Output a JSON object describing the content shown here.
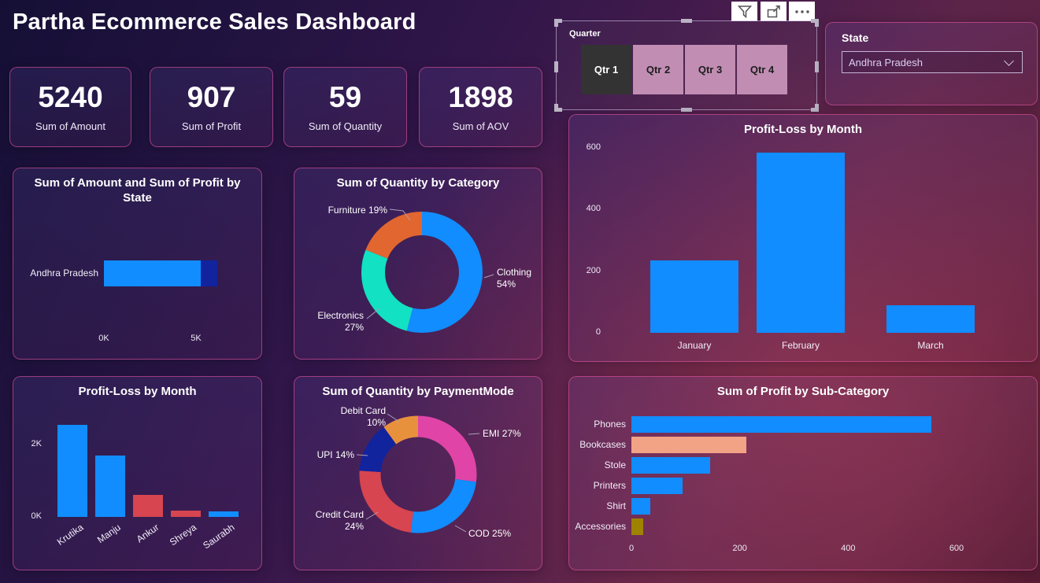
{
  "title": "Partha Ecommerce Sales Dashboard",
  "toolbar": {
    "buttons": [
      {
        "name": "filter"
      },
      {
        "name": "focus-mode"
      },
      {
        "name": "more-options"
      }
    ]
  },
  "quarter_slicer": {
    "label": "Quarter",
    "options": [
      {
        "label": "Qtr 1",
        "selected": true
      },
      {
        "label": "Qtr 2",
        "selected": false
      },
      {
        "label": "Qtr 3",
        "selected": false
      },
      {
        "label": "Qtr 4",
        "selected": false
      }
    ]
  },
  "state_filter": {
    "label": "State",
    "selected_value": "Andhra Pradesh"
  },
  "kpis": [
    {
      "value": "5240",
      "label": "Sum of Amount"
    },
    {
      "value": "907",
      "label": "Sum of Profit"
    },
    {
      "value": "59",
      "label": "Sum of Quantity"
    },
    {
      "value": "1898",
      "label": "Sum of AOV"
    }
  ],
  "chart_data": [
    {
      "id": "state-chart",
      "type": "bar",
      "orientation": "horizontal",
      "stacked": true,
      "title": "Sum of Amount and Sum of Profit by State",
      "categories": [
        "Andhra Pradesh"
      ],
      "series": [
        {
          "name": "Sum of Amount",
          "values": [
            5240
          ],
          "color": "#118DFF"
        },
        {
          "name": "Sum of Profit",
          "values": [
            907
          ],
          "color": "#12239E"
        }
      ],
      "x_ticks": [
        {
          "label": "0K",
          "value": 0
        },
        {
          "label": "5K",
          "value": 5000
        }
      ],
      "xlim": [
        0,
        6400
      ],
      "grid": false
    },
    {
      "id": "category-donut",
      "type": "pie",
      "subtype": "donut",
      "title": "Sum of Quantity by Category",
      "slices": [
        {
          "label": "Clothing",
          "pct": 54,
          "pct_label": "54%",
          "color": "#118DFF"
        },
        {
          "label": "Electronics",
          "pct": 27,
          "pct_label": "27%",
          "color": "#12E1C3"
        },
        {
          "label": "Furniture",
          "pct": 19,
          "pct_label": "19%",
          "color": "#E2662F"
        }
      ]
    },
    {
      "id": "month-chart",
      "type": "bar",
      "orientation": "vertical",
      "title": "Profit-Loss by Month",
      "categories": [
        "January",
        "February",
        "March"
      ],
      "values": [
        235,
        585,
        90
      ],
      "bar_colors": [
        "#118DFF",
        "#118DFF",
        "#118DFF"
      ],
      "y_ticks": [
        {
          "label": "0",
          "value": 0
        },
        {
          "label": "200",
          "value": 200
        },
        {
          "label": "400",
          "value": 400
        },
        {
          "label": "600",
          "value": 600
        }
      ],
      "ylim": [
        0,
        620
      ],
      "grid": false
    },
    {
      "id": "person-chart",
      "type": "bar",
      "orientation": "vertical",
      "title": "Profit-Loss by Month",
      "categories": [
        "Krutika",
        "Manju",
        "Ankur",
        "Shreya",
        "Saurabh"
      ],
      "values": [
        2550,
        1700,
        600,
        170,
        150
      ],
      "bar_colors": [
        "#118DFF",
        "#118DFF",
        "#D64550",
        "#D64550",
        "#118DFF"
      ],
      "y_ticks": [
        {
          "label": "0K",
          "value": 0
        },
        {
          "label": "2K",
          "value": 2000
        }
      ],
      "ylim": [
        0,
        2600
      ],
      "x_labels_rotated": true,
      "grid": false
    },
    {
      "id": "payment-donut",
      "type": "pie",
      "subtype": "donut",
      "title": "Sum of Quantity by PaymentMode",
      "slices": [
        {
          "label": "EMI",
          "pct": 27,
          "pct_label": "27%",
          "color": "#E044A7"
        },
        {
          "label": "COD",
          "pct": 25,
          "pct_label": "25%",
          "color": "#118DFF"
        },
        {
          "label": "Credit Card",
          "pct": 24,
          "pct_label": "24%",
          "color": "#D64550"
        },
        {
          "label": "UPI",
          "pct": 14,
          "pct_label": "14%",
          "color": "#12239E"
        },
        {
          "label": "Debit Card",
          "pct": 10,
          "pct_label": "10%",
          "color": "#E8913D"
        }
      ]
    },
    {
      "id": "subcat-chart",
      "type": "bar",
      "orientation": "horizontal",
      "title": "Sum of Profit by Sub-Category",
      "categories": [
        "Phones",
        "Bookcases",
        "Stole",
        "Printers",
        "Shirt",
        "Accessories"
      ],
      "values": [
        554,
        212,
        145,
        95,
        35,
        22
      ],
      "bar_colors": [
        "#118DFF",
        "#F2A285",
        "#118DFF",
        "#118DFF",
        "#118DFF",
        "#9E8300"
      ],
      "x_ticks": [
        {
          "label": "0",
          "value": 0
        },
        {
          "label": "200",
          "value": 200
        },
        {
          "label": "400",
          "value": 400
        },
        {
          "label": "600",
          "value": 600
        }
      ],
      "xlim": [
        0,
        620
      ],
      "grid": false
    }
  ]
}
